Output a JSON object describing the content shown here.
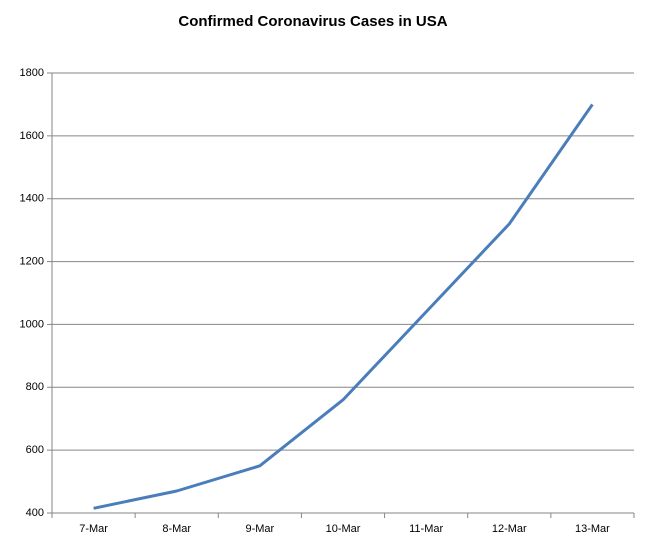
{
  "chart_data": {
    "type": "line",
    "title": "Confirmed Coronavirus Cases in USA",
    "categories": [
      "7-Mar",
      "8-Mar",
      "9-Mar",
      "10-Mar",
      "11-Mar",
      "12-Mar",
      "13-Mar"
    ],
    "values": [
      415,
      470,
      550,
      760,
      1040,
      1320,
      1700
    ],
    "color": "#4a7ebb",
    "ylim": [
      400,
      1800
    ],
    "yticks": [
      400,
      600,
      800,
      1000,
      1200,
      1400,
      1600,
      1800
    ],
    "grid": true
  }
}
